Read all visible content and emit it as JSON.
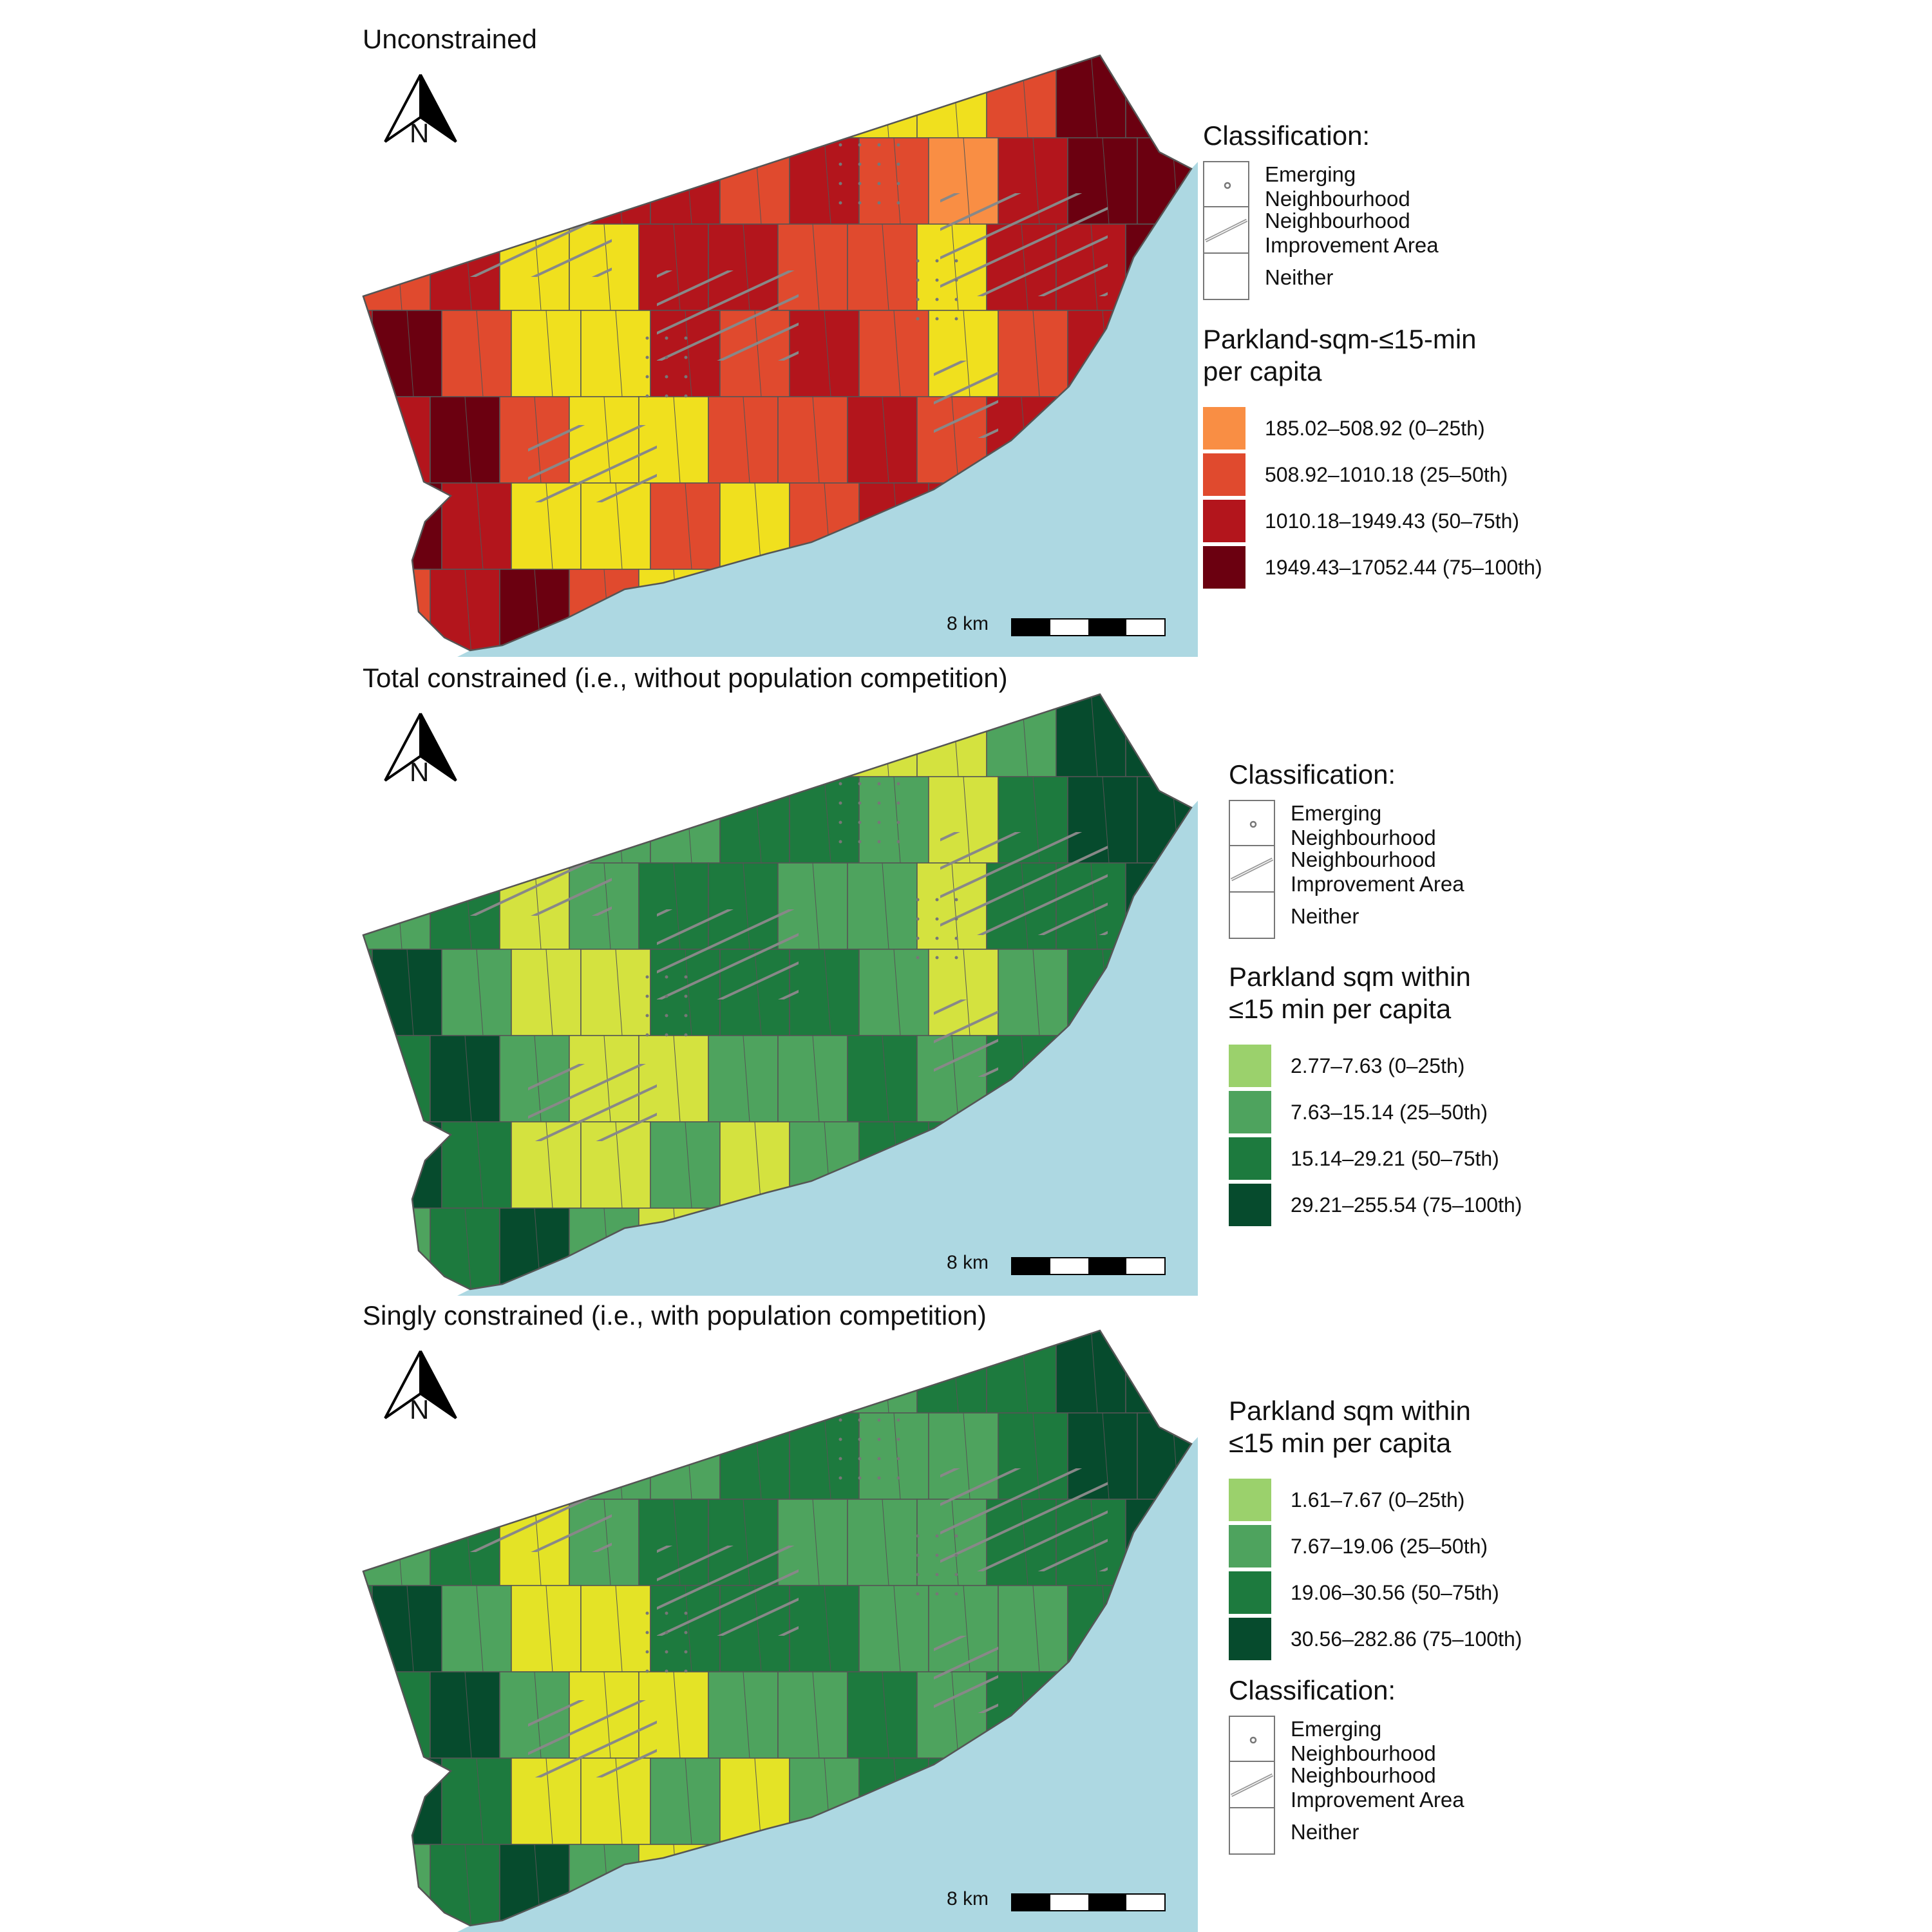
{
  "panels": [
    {
      "title": "Unconstrained",
      "north_label": "N",
      "scale_label": "8 km",
      "classification": {
        "title": "Classification:",
        "items": [
          {
            "line1": "Emerging",
            "line2": "Neighbourhood",
            "pattern": "dots"
          },
          {
            "line1": "Neighbourhood",
            "line2": "Improvement Area",
            "pattern": "hatch"
          },
          {
            "line1": "Neither",
            "line2": "",
            "pattern": "none"
          }
        ]
      },
      "value_legend": {
        "title_line1": "Parkland-sqm-≤15-min",
        "title_line2": "per capita",
        "items": [
          {
            "label": "185.02–508.92 (0–25th)",
            "color": "#f98e44"
          },
          {
            "label": "508.92–1010.18 (25–50th)",
            "color": "#e04a2e"
          },
          {
            "label": "1010.18–1949.43 (50–75th)",
            "color": "#b3151c"
          },
          {
            "label": "1949.43–17052.44 (75–100th)",
            "color": "#6b0010"
          }
        ],
        "fill_highlight": "#f0e01e"
      }
    },
    {
      "title": "Total constrained (i.e., without population competition)",
      "north_label": "N",
      "scale_label": "8 km",
      "classification": {
        "title": "Classification:",
        "items": [
          {
            "line1": "Emerging",
            "line2": "Neighbourhood",
            "pattern": "dots"
          },
          {
            "line1": "Neighbourhood",
            "line2": "Improvement Area",
            "pattern": "hatch"
          },
          {
            "line1": "Neither",
            "line2": "",
            "pattern": "none"
          }
        ]
      },
      "value_legend": {
        "title_line1": "Parkland sqm within",
        "title_line2": "≤15 min per capita",
        "items": [
          {
            "label": "2.77–7.63 (0–25th)",
            "color": "#9bd16c"
          },
          {
            "label": "7.63–15.14 (25–50th)",
            "color": "#4ea35e"
          },
          {
            "label": "15.14–29.21 (50–75th)",
            "color": "#1d7a3e"
          },
          {
            "label": "29.21–255.54 (75–100th)",
            "color": "#064b2d"
          }
        ],
        "fill_highlight": "#d4e23f"
      }
    },
    {
      "title": "Singly constrained (i.e., with population competition)",
      "north_label": "N",
      "scale_label": "8 km",
      "value_legend": {
        "title_line1": "Parkland sqm within",
        "title_line2": "≤15 min per capita",
        "items": [
          {
            "label": "1.61–7.67 (0–25th)",
            "color": "#9bd16c"
          },
          {
            "label": "7.67–19.06 (25–50th)",
            "color": "#4ea35e"
          },
          {
            "label": "19.06–30.56 (50–75th)",
            "color": "#1d7a3e"
          },
          {
            "label": "30.56–282.86 (75–100th)",
            "color": "#064b2d"
          }
        ],
        "fill_highlight": "#e4e326"
      },
      "classification": {
        "title": "Classification:",
        "items": [
          {
            "line1": "Emerging",
            "line2": "Neighbourhood",
            "pattern": "dots"
          },
          {
            "line1": "Neighbourhood",
            "line2": "Improvement Area",
            "pattern": "hatch"
          },
          {
            "line1": "Neither",
            "line2": "",
            "pattern": "none"
          }
        ]
      }
    }
  ],
  "colors": {
    "water": "#add8e2",
    "boundary": "#555555",
    "hatch": "#888888",
    "dot": "#777777"
  }
}
